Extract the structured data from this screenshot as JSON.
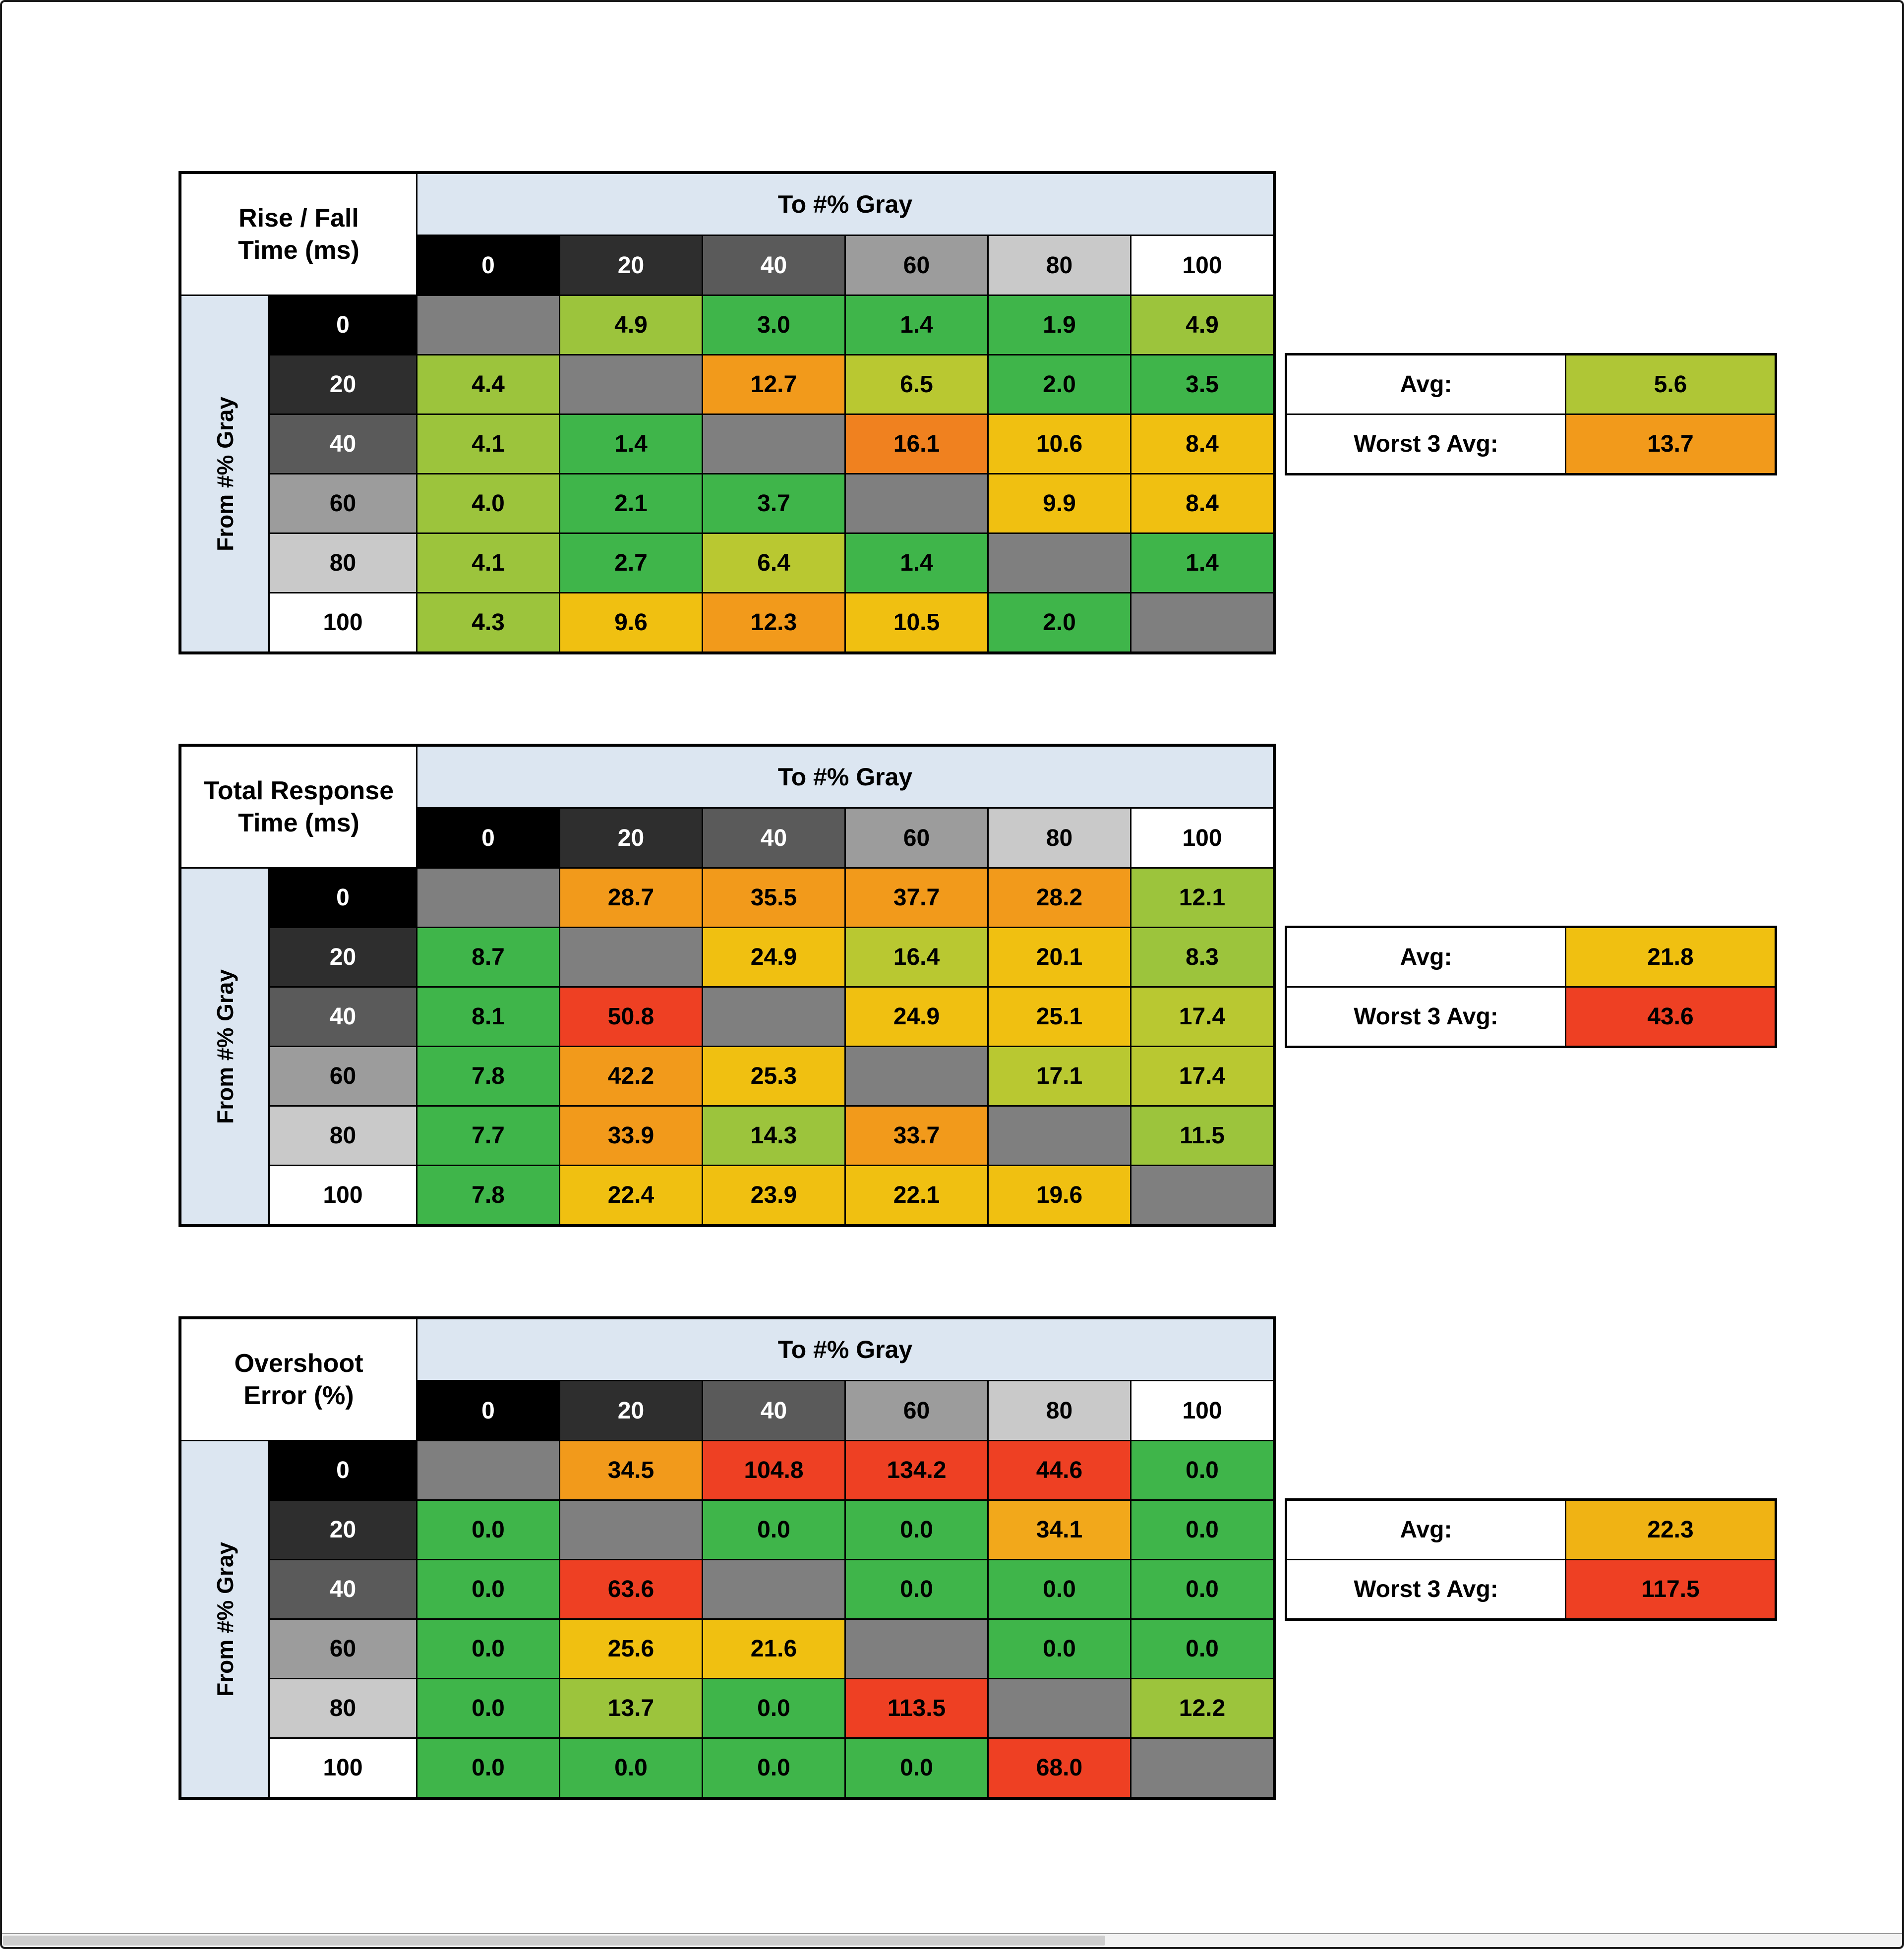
{
  "window": {
    "background": "#ffffff",
    "frame_color": "#1a1a1a"
  },
  "gray_scale": {
    "bg": [
      "#000000",
      "#2E2E2E",
      "#5A5A5A",
      "#9C9C9C",
      "#C9C9C9",
      "#FFFFFF"
    ],
    "fg": [
      "#FFFFFF",
      "#FFFFFF",
      "#FFFFFF",
      "#000000",
      "#000000",
      "#000000"
    ]
  },
  "diagonal_color": "#7F7F7F",
  "band_color": "#DCE6F1",
  "chart_data": [
    {
      "type": "heatmap",
      "title": "Rise / Fall Time (ms)",
      "title_lines": [
        "Rise / Fall",
        "Time (ms)"
      ],
      "x_label": "To #% Gray",
      "y_label": "From #% Gray",
      "x_ticks": [
        "0",
        "20",
        "40",
        "60",
        "80",
        "100"
      ],
      "y_ticks": [
        "0",
        "20",
        "40",
        "60",
        "80",
        "100"
      ],
      "values": [
        [
          null,
          4.9,
          3.0,
          1.4,
          1.9,
          4.9
        ],
        [
          4.4,
          null,
          12.7,
          6.5,
          2.0,
          3.5
        ],
        [
          4.1,
          1.4,
          null,
          16.1,
          10.6,
          8.4
        ],
        [
          4.0,
          2.1,
          3.7,
          null,
          9.9,
          8.4
        ],
        [
          4.1,
          2.7,
          6.4,
          1.4,
          null,
          1.4
        ],
        [
          4.3,
          9.6,
          12.3,
          10.5,
          2.0,
          null
        ]
      ],
      "labels": [
        [
          null,
          "4.9",
          "3.0",
          "1.4",
          "1.9",
          "4.9"
        ],
        [
          "4.4",
          null,
          "12.7",
          "6.5",
          "2.0",
          "3.5"
        ],
        [
          "4.1",
          "1.4",
          null,
          "16.1",
          "10.6",
          "8.4"
        ],
        [
          "4.0",
          "2.1",
          "3.7",
          null,
          "9.9",
          "8.4"
        ],
        [
          "4.1",
          "2.7",
          "6.4",
          "1.4",
          null,
          "1.4"
        ],
        [
          "4.3",
          "9.6",
          "12.3",
          "10.5",
          "2.0",
          null
        ]
      ],
      "colors": [
        [
          null,
          "#9CC43C",
          "#3FB54A",
          "#3FB54A",
          "#3FB54A",
          "#9CC43C"
        ],
        [
          "#9CC43C",
          null,
          "#F29A1B",
          "#B9C831",
          "#3FB54A",
          "#3FB54A"
        ],
        [
          "#9CC43C",
          "#3FB54A",
          null,
          "#F0811F",
          "#F0C011",
          "#F0C011"
        ],
        [
          "#9CC43C",
          "#3FB54A",
          "#3FB54A",
          null,
          "#F0C011",
          "#F0C011"
        ],
        [
          "#9CC43C",
          "#3FB54A",
          "#B9C831",
          "#3FB54A",
          null,
          "#3FB54A"
        ],
        [
          "#9CC43C",
          "#F0C011",
          "#F29A1B",
          "#F0C011",
          "#3FB54A",
          null
        ]
      ],
      "summary": {
        "avg_label": "Avg:",
        "avg_value": "5.6",
        "avg_color": "#AFC636",
        "worst_label": "Worst 3 Avg:",
        "worst_value": "13.7",
        "worst_color": "#F29A1B"
      }
    },
    {
      "type": "heatmap",
      "title": "Total Response Time (ms)",
      "title_lines": [
        "Total Response",
        "Time (ms)"
      ],
      "x_label": "To #% Gray",
      "y_label": "From #% Gray",
      "x_ticks": [
        "0",
        "20",
        "40",
        "60",
        "80",
        "100"
      ],
      "y_ticks": [
        "0",
        "20",
        "40",
        "60",
        "80",
        "100"
      ],
      "values": [
        [
          null,
          28.7,
          35.5,
          37.7,
          28.2,
          12.1
        ],
        [
          8.7,
          null,
          24.9,
          16.4,
          20.1,
          8.3
        ],
        [
          8.1,
          50.8,
          null,
          24.9,
          25.1,
          17.4
        ],
        [
          7.8,
          42.2,
          25.3,
          null,
          17.1,
          17.4
        ],
        [
          7.7,
          33.9,
          14.3,
          33.7,
          null,
          11.5
        ],
        [
          7.8,
          22.4,
          23.9,
          22.1,
          19.6,
          null
        ]
      ],
      "labels": [
        [
          null,
          "28.7",
          "35.5",
          "37.7",
          "28.2",
          "12.1"
        ],
        [
          "8.7",
          null,
          "24.9",
          "16.4",
          "20.1",
          "8.3"
        ],
        [
          "8.1",
          "50.8",
          null,
          "24.9",
          "25.1",
          "17.4"
        ],
        [
          "7.8",
          "42.2",
          "25.3",
          null,
          "17.1",
          "17.4"
        ],
        [
          "7.7",
          "33.9",
          "14.3",
          "33.7",
          null,
          "11.5"
        ],
        [
          "7.8",
          "22.4",
          "23.9",
          "22.1",
          "19.6",
          null
        ]
      ],
      "colors": [
        [
          null,
          "#F29A1B",
          "#F29A1B",
          "#F29A1B",
          "#F29A1B",
          "#9CC43C"
        ],
        [
          "#3FB54A",
          null,
          "#F0C011",
          "#B9C831",
          "#F0C011",
          "#9CC43C"
        ],
        [
          "#3FB54A",
          "#EE4023",
          null,
          "#F0C011",
          "#F0C011",
          "#B9C831"
        ],
        [
          "#3FB54A",
          "#F29A1B",
          "#F0C011",
          null,
          "#B9C831",
          "#B9C831"
        ],
        [
          "#3FB54A",
          "#F29A1B",
          "#9CC43C",
          "#F29A1B",
          null,
          "#9CC43C"
        ],
        [
          "#3FB54A",
          "#F0C011",
          "#F0C011",
          "#F0C011",
          "#F0C011",
          null
        ]
      ],
      "summary": {
        "avg_label": "Avg:",
        "avg_value": "21.8",
        "avg_color": "#F0C011",
        "worst_label": "Worst 3 Avg:",
        "worst_value": "43.6",
        "worst_color": "#EE4023"
      }
    },
    {
      "type": "heatmap",
      "title": "Overshoot Error (%)",
      "title_lines": [
        "Overshoot",
        "Error (%)"
      ],
      "x_label": "To #% Gray",
      "y_label": "From #% Gray",
      "x_ticks": [
        "0",
        "20",
        "40",
        "60",
        "80",
        "100"
      ],
      "y_ticks": [
        "0",
        "20",
        "40",
        "60",
        "80",
        "100"
      ],
      "values": [
        [
          null,
          34.5,
          104.8,
          134.2,
          44.6,
          0.0
        ],
        [
          0.0,
          null,
          0.0,
          0.0,
          34.1,
          0.0
        ],
        [
          0.0,
          63.6,
          null,
          0.0,
          0.0,
          0.0
        ],
        [
          0.0,
          25.6,
          21.6,
          null,
          0.0,
          0.0
        ],
        [
          0.0,
          13.7,
          0.0,
          113.5,
          null,
          12.2
        ],
        [
          0.0,
          0.0,
          0.0,
          0.0,
          68.0,
          null
        ]
      ],
      "labels": [
        [
          null,
          "34.5",
          "104.8",
          "134.2",
          "44.6",
          "0.0"
        ],
        [
          "0.0",
          null,
          "0.0",
          "0.0",
          "34.1",
          "0.0"
        ],
        [
          "0.0",
          "63.6",
          null,
          "0.0",
          "0.0",
          "0.0"
        ],
        [
          "0.0",
          "25.6",
          "21.6",
          null,
          "0.0",
          "0.0"
        ],
        [
          "0.0",
          "13.7",
          "0.0",
          "113.5",
          null,
          "12.2"
        ],
        [
          "0.0",
          "0.0",
          "0.0",
          "0.0",
          "68.0",
          null
        ]
      ],
      "colors": [
        [
          null,
          "#F29A1B",
          "#EE4023",
          "#EE4023",
          "#EE4023",
          "#3FB54A"
        ],
        [
          "#3FB54A",
          null,
          "#3FB54A",
          "#3FB54A",
          "#F2A81B",
          "#3FB54A"
        ],
        [
          "#3FB54A",
          "#EE4023",
          null,
          "#3FB54A",
          "#3FB54A",
          "#3FB54A"
        ],
        [
          "#3FB54A",
          "#F0C011",
          "#F0C011",
          null,
          "#3FB54A",
          "#3FB54A"
        ],
        [
          "#3FB54A",
          "#9CC43C",
          "#3FB54A",
          "#EE4023",
          null,
          "#9CC43C"
        ],
        [
          "#3FB54A",
          "#3FB54A",
          "#3FB54A",
          "#3FB54A",
          "#EE4023",
          null
        ]
      ],
      "summary": {
        "avg_label": "Avg:",
        "avg_value": "22.3",
        "avg_color": "#F0B314",
        "worst_label": "Worst 3 Avg:",
        "worst_value": "117.5",
        "worst_color": "#EE4023"
      }
    }
  ]
}
